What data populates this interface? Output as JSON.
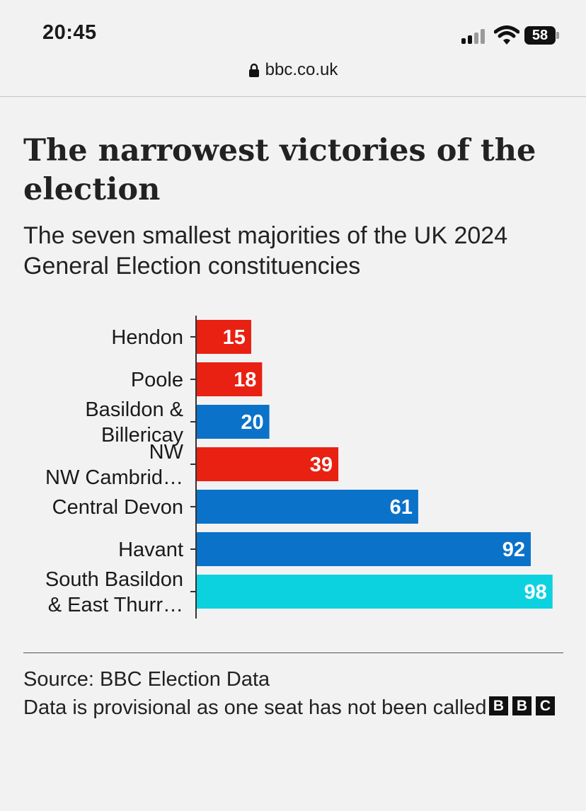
{
  "status_bar": {
    "time": "20:45",
    "battery": "58",
    "icons": [
      "signal-icon",
      "wifi-icon",
      "battery-icon"
    ]
  },
  "address_bar": {
    "url": "bbc.co.uk",
    "icon": "lock-icon"
  },
  "footer": {
    "source": "Source: BBC Election Data",
    "note": "Data is provisional as one seat has not been called",
    "logo_letters": [
      "B",
      "B",
      "C"
    ]
  },
  "colors": {
    "labour": "#e82112",
    "conservative": "#0b72c9",
    "reform": "#0cd2e0"
  },
  "chart_data": {
    "type": "bar",
    "orientation": "horizontal",
    "title": "The narrowest victories of the election",
    "subtitle": "The seven smallest majorities of the UK 2024 General Election constituencies",
    "xlabel": "",
    "ylabel": "",
    "xlim": [
      0,
      100
    ],
    "grid": false,
    "categories": [
      [
        "Hendon"
      ],
      [
        "Poole"
      ],
      [
        "Basildon &",
        "Billericay"
      ],
      [
        "NW",
        "NW Cambrid…"
      ],
      [
        "Central Devon"
      ],
      [
        "Havant"
      ],
      [
        "South Basildon",
        "& East Thurr…"
      ]
    ],
    "values": [
      15,
      18,
      20,
      39,
      61,
      92,
      98
    ],
    "value_labels": [
      "15",
      "18",
      "20",
      "39",
      "61",
      "92",
      "98"
    ],
    "bar_colors": [
      "#e82112",
      "#e82112",
      "#0b72c9",
      "#e82112",
      "#0b72c9",
      "#0b72c9",
      "#0cd2e0"
    ]
  }
}
